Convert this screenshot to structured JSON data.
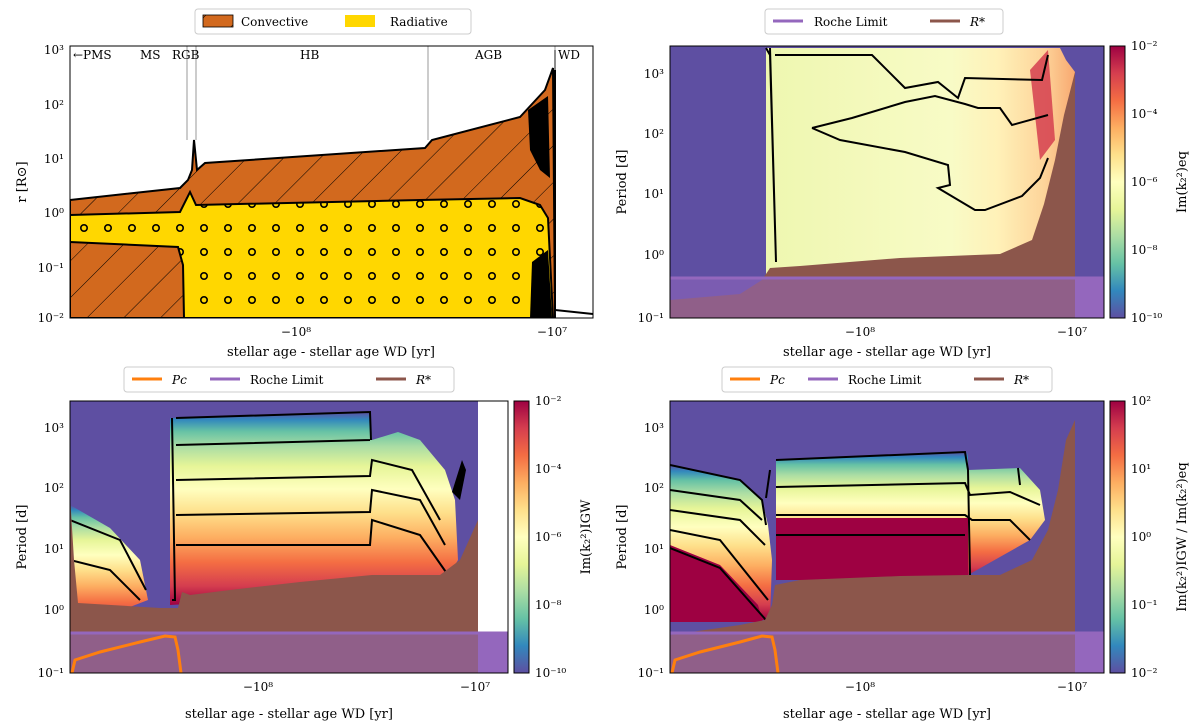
{
  "colors": {
    "convective": "#d2691e",
    "radiative": "#ffd700",
    "roche": "#9467bd",
    "rstar": "#8c564b",
    "pc": "#ff7f0e",
    "background_blue": "#5e4fa2",
    "contour": "#000000"
  },
  "chart_data": [
    {
      "type": "area",
      "panel": "top-left",
      "xlabel": "stellar age - stellar age WD [yr]",
      "ylabel": "r [R⊙]",
      "yscale": "log",
      "ylim": [
        0.01,
        1000
      ],
      "xticks": [
        "−10⁸",
        "−10⁷"
      ],
      "yticks": [
        "10⁻²",
        "10⁻¹",
        "10⁰",
        "10¹",
        "10²",
        "10³"
      ],
      "legend": {
        "placement": "top-center",
        "entries": [
          "Convective",
          "Radiative"
        ]
      },
      "phases": [
        "←PMS",
        "MS",
        "RGB",
        "HB",
        "AGB",
        "WD"
      ]
    },
    {
      "type": "heatmap",
      "panel": "top-right",
      "xlabel": "stellar age - stellar age WD [yr]",
      "ylabel": "Period [d]",
      "yscale": "log",
      "ylim": [
        0.1,
        3000
      ],
      "xticks": [
        "−10⁸",
        "−10⁷"
      ],
      "yticks": [
        "10⁻¹",
        "10⁰",
        "10¹",
        "10²",
        "10³"
      ],
      "legend": {
        "placement": "top-center",
        "entries": [
          "Roche Limit",
          "R*"
        ]
      },
      "colorbar": {
        "label": "Im(k₂²)eq",
        "scale": "log",
        "range": [
          1e-10,
          0.01
        ],
        "ticks": [
          "10⁻²",
          "10⁻⁴",
          "10⁻⁶",
          "10⁻⁸",
          "10⁻¹⁰"
        ]
      }
    },
    {
      "type": "heatmap",
      "panel": "bottom-left",
      "xlabel": "stellar age - stellar age WD [yr]",
      "ylabel": "Period [d]",
      "yscale": "log",
      "ylim": [
        0.1,
        3000
      ],
      "xticks": [
        "−10⁸",
        "−10⁷"
      ],
      "yticks": [
        "10⁻¹",
        "10⁰",
        "10¹",
        "10²",
        "10³"
      ],
      "legend": {
        "placement": "top-center",
        "entries": [
          "Pc",
          "Roche Limit",
          "R*"
        ]
      },
      "colorbar": {
        "label": "Im(k₂²)IGW",
        "scale": "log",
        "range": [
          1e-10,
          0.01
        ],
        "ticks": [
          "10⁻²",
          "10⁻⁴",
          "10⁻⁶",
          "10⁻⁸",
          "10⁻¹⁰"
        ]
      }
    },
    {
      "type": "heatmap",
      "panel": "bottom-right",
      "xlabel": "stellar age - stellar age WD [yr]",
      "ylabel": "Period [d]",
      "yscale": "log",
      "ylim": [
        0.1,
        3000
      ],
      "xticks": [
        "−10⁸",
        "−10⁷"
      ],
      "yticks": [
        "10⁻¹",
        "10⁰",
        "10¹",
        "10²",
        "10³"
      ],
      "legend": {
        "placement": "top-center",
        "entries": [
          "Pc",
          "Roche Limit",
          "R*"
        ]
      },
      "colorbar": {
        "label": "Im(k₂²)IGW / Im(k₂²)eq",
        "scale": "log",
        "range": [
          0.01,
          100
        ],
        "ticks": [
          "10²",
          "10¹",
          "10⁰",
          "10⁻¹",
          "10⁻²"
        ]
      }
    }
  ]
}
